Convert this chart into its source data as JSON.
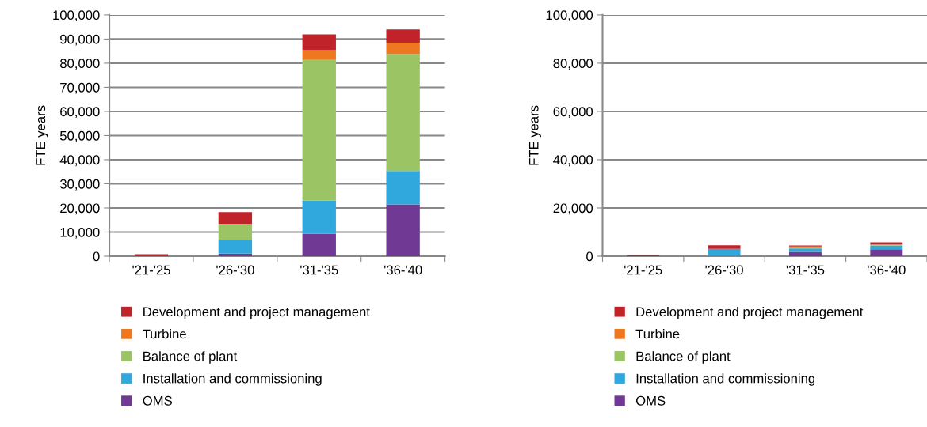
{
  "chart_data": [
    {
      "type": "bar",
      "stacked": true,
      "ylabel": "FTE years",
      "categories": [
        "'21-'25",
        "'26-'30",
        "'31-'35",
        "'36-'40"
      ],
      "ylim": [
        0,
        100000
      ],
      "yticks": [
        {
          "value": 0,
          "label": "0"
        },
        {
          "value": 10000,
          "label": "10,000"
        },
        {
          "value": 20000,
          "label": "20,000"
        },
        {
          "value": 30000,
          "label": "30,000"
        },
        {
          "value": 40000,
          "label": "40,000"
        },
        {
          "value": 50000,
          "label": "50,000"
        },
        {
          "value": 60000,
          "label": "60,000"
        },
        {
          "value": 70000,
          "label": "70,000"
        },
        {
          "value": 80000,
          "label": "80,000"
        },
        {
          "value": 90000,
          "label": "90,000"
        },
        {
          "value": 100000,
          "label": "100,000"
        }
      ],
      "grid": "y",
      "legend": "bottom",
      "series": [
        {
          "name": "OMS",
          "color": "#703a94",
          "values": [
            0,
            1100,
            9300,
            21500
          ]
        },
        {
          "name": "Installation and commissioning",
          "color": "#30a8de",
          "values": [
            0,
            5800,
            13800,
            13800
          ]
        },
        {
          "name": "Balance of plant",
          "color": "#9bc564",
          "values": [
            0,
            6500,
            58300,
            48500
          ]
        },
        {
          "name": "Turbine",
          "color": "#ee7722",
          "values": [
            0,
            0,
            4000,
            4700
          ]
        },
        {
          "name": "Development and project management",
          "color": "#c0232a",
          "values": [
            800,
            4900,
            6500,
            5500
          ]
        }
      ]
    },
    {
      "type": "bar",
      "stacked": true,
      "ylabel": "FTE years",
      "categories": [
        "'21-'25",
        "'26-'30",
        "'31-'35",
        "'36-'40"
      ],
      "ylim": [
        0,
        100000
      ],
      "yticks": [
        {
          "value": 0,
          "label": "0"
        },
        {
          "value": 20000,
          "label": "20,000"
        },
        {
          "value": 40000,
          "label": "40,000"
        },
        {
          "value": 60000,
          "label": "60,000"
        },
        {
          "value": 80000,
          "label": "80,000"
        },
        {
          "value": 100000,
          "label": "100,000"
        }
      ],
      "grid": "y",
      "legend": "bottom",
      "series": [
        {
          "name": "OMS",
          "color": "#703a94",
          "values": [
            0,
            200,
            1800,
            2900
          ]
        },
        {
          "name": "Installation and commissioning",
          "color": "#30a8de",
          "values": [
            0,
            2800,
            1400,
            1500
          ]
        },
        {
          "name": "Balance of plant",
          "color": "#9bc564",
          "values": [
            0,
            0,
            500,
            300
          ]
        },
        {
          "name": "Turbine",
          "color": "#ee7722",
          "values": [
            0,
            0,
            300,
            100
          ]
        },
        {
          "name": "Development and project management",
          "color": "#c0232a",
          "values": [
            400,
            1500,
            400,
            900
          ]
        }
      ]
    }
  ]
}
